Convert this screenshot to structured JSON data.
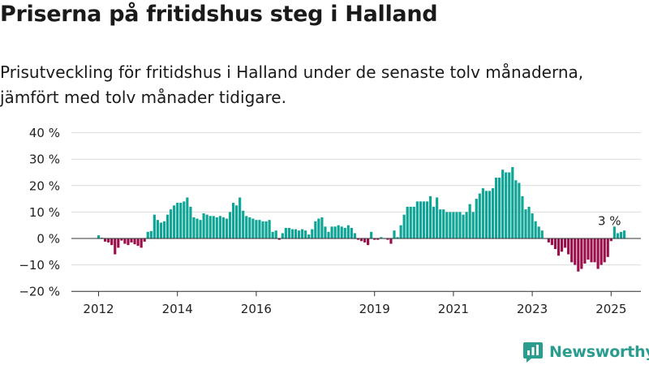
{
  "header": {
    "title": "Priserna på fritidshus steg i Halland",
    "subtitle": "Prisutveckling för fritidshus i Halland under de senaste tolv månaderna, jämfört med tolv månader tidigare."
  },
  "brand": {
    "name": "Newsworthy",
    "icon": "newsworthy-logo-icon"
  },
  "colors": {
    "positive": "#0ea596",
    "negative": "#9a0f4a",
    "grid": "#dcdcdc",
    "axis": "#333333",
    "brand": "#2a9d8f"
  },
  "chart_data": {
    "type": "bar",
    "y_unit": "%",
    "ylim": [
      -20,
      40
    ],
    "y_ticks": [
      {
        "value": 40,
        "label": "40 %"
      },
      {
        "value": 30,
        "label": "30 %"
      },
      {
        "value": 20,
        "label": "20 %"
      },
      {
        "value": 10,
        "label": "10 %"
      },
      {
        "value": 0,
        "label": "0 %"
      },
      {
        "value": -10,
        "label": "−10 %"
      },
      {
        "value": -20,
        "label": "−20 %"
      }
    ],
    "x_ticks": [
      {
        "month_index": 0,
        "label": "2012"
      },
      {
        "month_index": 24,
        "label": "2014"
      },
      {
        "month_index": 48,
        "label": "2016"
      },
      {
        "month_index": 84,
        "label": "2019"
      },
      {
        "month_index": 108,
        "label": "2021"
      },
      {
        "month_index": 132,
        "label": "2023"
      },
      {
        "month_index": 156,
        "label": "2025"
      }
    ],
    "grid": true,
    "series": [
      {
        "start": "2012-01",
        "values": [
          1.2,
          0.3,
          -1.2,
          -1.5,
          -2.5,
          -6.0,
          -3.5,
          -0.8,
          -2.0,
          -2.5,
          -1.5,
          -2.2,
          -2.8,
          -3.5,
          -1.2,
          2.5,
          2.8,
          9.0,
          7.0,
          6.0,
          6.5,
          9.0,
          11.0,
          12.5,
          13.5,
          13.5,
          14.0,
          15.5,
          12.0,
          8.0,
          7.5,
          7.0,
          9.5,
          9.0,
          8.5,
          8.5,
          8.0,
          8.5,
          8.0,
          7.5,
          10.0,
          13.5,
          12.5,
          15.5,
          10.5,
          8.5,
          8.0,
          7.5,
          7.0,
          7.0,
          6.5,
          6.5,
          7.0,
          2.5,
          3.0,
          -0.5,
          2.0,
          4.0,
          4.0,
          3.5,
          3.5,
          3.0,
          3.5,
          3.0,
          1.5,
          3.5,
          6.5,
          7.5,
          8.0,
          4.5,
          2.5,
          4.5,
          4.5,
          5.0,
          4.5,
          4.0,
          5.0,
          4.0,
          2.0,
          -0.5,
          -1.0,
          -1.5,
          -2.5,
          2.5,
          -0.5,
          -0.5,
          0.5,
          0.0,
          -0.5,
          -2.0,
          3.0,
          0.5,
          5.0,
          9.0,
          12.0,
          12.0,
          12.0,
          14.0,
          14.0,
          14.0,
          14.0,
          16.0,
          12.0,
          15.5,
          11.0,
          11.0,
          10.0,
          10.0,
          10.0,
          10.0,
          10.0,
          9.0,
          10.0,
          13.0,
          10.0,
          15.0,
          17.0,
          19.0,
          18.0,
          18.0,
          19.0,
          23.0,
          23.0,
          26.0,
          25.0,
          25.0,
          27.0,
          22.0,
          21.0,
          16.0,
          11.0,
          12.0,
          9.5,
          6.5,
          4.5,
          3.0,
          0.0,
          -1.5,
          -2.5,
          -4.0,
          -6.5,
          -5.0,
          -3.5,
          -6.0,
          -9.0,
          -10.0,
          -12.5,
          -11.5,
          -9.5,
          -8.0,
          -9.0,
          -9.0,
          -11.5,
          -10.0,
          -9.0,
          -7.0,
          -1.0,
          4.5,
          2.0,
          2.5,
          3.0
        ]
      }
    ],
    "annotations": [
      {
        "month_index": 156,
        "label": "3 %"
      }
    ]
  }
}
